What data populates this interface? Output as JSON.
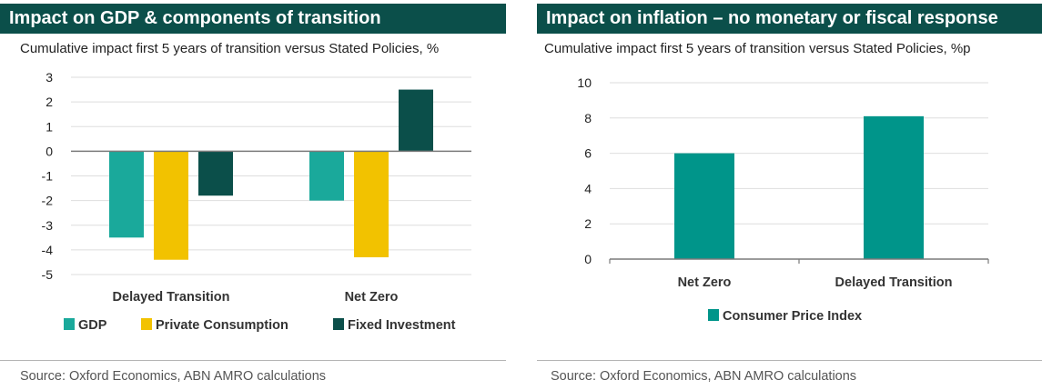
{
  "left_panel": {
    "header": "Impact on GDP & components of transition",
    "subtitle": "Cumulative impact first 5 years of transition versus Stated Policies, %",
    "source": "Source: Oxford Economics, ABN AMRO calculations"
  },
  "right_panel": {
    "header": "Impact on inflation – no monetary or fiscal response",
    "subtitle": "Cumulative impact first 5 years of transition versus Stated Policies, %p",
    "source": "Source: Oxford Economics, ABN AMRO calculations"
  },
  "chart_data": [
    {
      "type": "bar",
      "title": "Impact on GDP & components of transition",
      "subtitle": "Cumulative impact first 5 years of transition versus Stated Policies, %",
      "categories": [
        "Delayed Transition",
        "Net Zero"
      ],
      "series": [
        {
          "name": "GDP",
          "values": [
            -3.5,
            -2.0
          ],
          "color": "#1aa99b"
        },
        {
          "name": "Private Consumption",
          "values": [
            -4.4,
            -4.3
          ],
          "color": "#f2c200"
        },
        {
          "name": "Fixed Investment",
          "values": [
            -1.8,
            2.5
          ],
          "color": "#0b4f4a"
        }
      ],
      "ylim": [
        -5,
        3
      ],
      "yticks": [
        3,
        2,
        1,
        0,
        -1,
        -2,
        -3,
        -4,
        -5
      ],
      "grid": true,
      "legend": "bottom"
    },
    {
      "type": "bar",
      "title": "Impact on inflation – no monetary or fiscal response",
      "subtitle": "Cumulative impact first 5 years of transition versus Stated Policies, %p",
      "categories": [
        "Net Zero",
        "Delayed Transition"
      ],
      "series": [
        {
          "name": "Consumer Price Index",
          "values": [
            6.0,
            8.1
          ],
          "color": "#00958a"
        }
      ],
      "ylim": [
        0,
        10
      ],
      "yticks": [
        10,
        8,
        6,
        4,
        2,
        0
      ],
      "grid": true,
      "legend": "bottom"
    }
  ]
}
